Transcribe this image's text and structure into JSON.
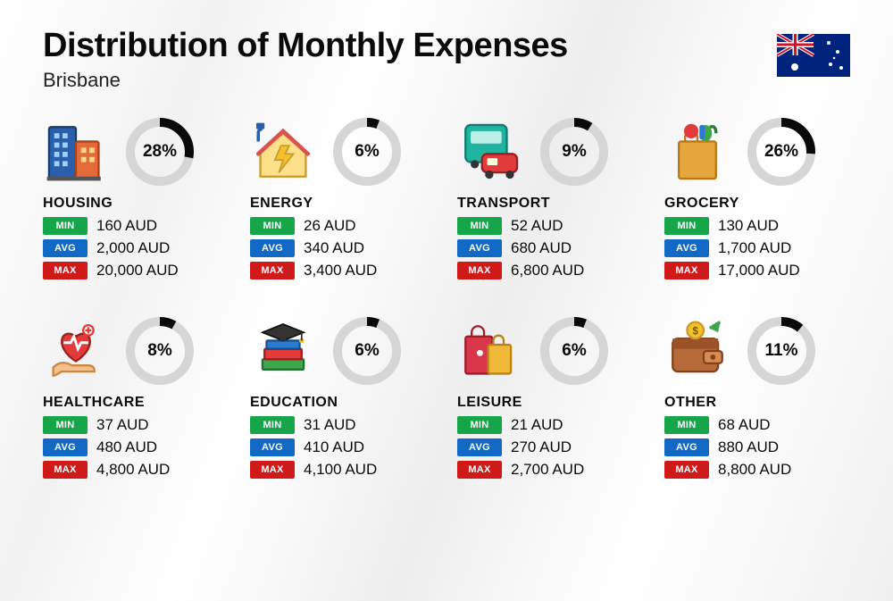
{
  "title": "Distribution of Monthly Expenses",
  "subtitle": "Brisbane",
  "currency": "AUD",
  "badges": {
    "min": "MIN",
    "avg": "AVG",
    "max": "MAX"
  },
  "colors": {
    "donut_track": "#d6d6d6",
    "donut_fill": "#0a0a0a",
    "min_badge": "#17a549",
    "avg_badge": "#1268c5",
    "max_badge": "#cf1a1a",
    "text": "#0a0a0a",
    "background_gradient": [
      "#ffffff",
      "#f2f2f2",
      "#ffffff",
      "#eeeeee",
      "#ffffff",
      "#f0f0f0"
    ]
  },
  "donut": {
    "radius": 33,
    "stroke_width": 10
  },
  "categories": [
    {
      "name": "HOUSING",
      "percent": 28,
      "min": "160 AUD",
      "avg": "2,000 AUD",
      "max": "20,000 AUD",
      "icon": "buildings"
    },
    {
      "name": "ENERGY",
      "percent": 6,
      "min": "26 AUD",
      "avg": "340 AUD",
      "max": "3,400 AUD",
      "icon": "energy-house"
    },
    {
      "name": "TRANSPORT",
      "percent": 9,
      "min": "52 AUD",
      "avg": "680 AUD",
      "max": "6,800 AUD",
      "icon": "bus-car"
    },
    {
      "name": "GROCERY",
      "percent": 26,
      "min": "130 AUD",
      "avg": "1,700 AUD",
      "max": "17,000 AUD",
      "icon": "grocery-bag"
    },
    {
      "name": "HEALTHCARE",
      "percent": 8,
      "min": "37 AUD",
      "avg": "480 AUD",
      "max": "4,800 AUD",
      "icon": "heart-hand"
    },
    {
      "name": "EDUCATION",
      "percent": 6,
      "min": "31 AUD",
      "avg": "410 AUD",
      "max": "4,100 AUD",
      "icon": "grad-books"
    },
    {
      "name": "LEISURE",
      "percent": 6,
      "min": "21 AUD",
      "avg": "270 AUD",
      "max": "2,700 AUD",
      "icon": "shopping-bags"
    },
    {
      "name": "OTHER",
      "percent": 11,
      "min": "68 AUD",
      "avg": "880 AUD",
      "max": "8,800 AUD",
      "icon": "wallet"
    }
  ],
  "flag": "australia"
}
